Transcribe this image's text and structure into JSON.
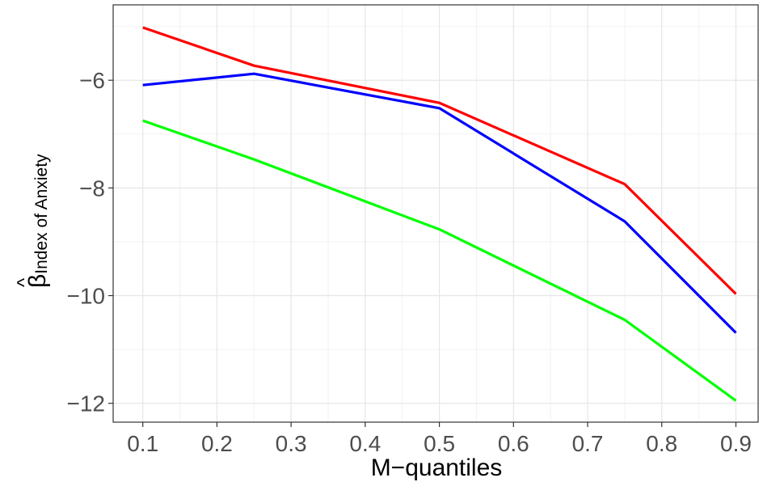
{
  "chart_data": {
    "type": "line",
    "xlabel": "M−quantiles",
    "ylabel": {
      "main": "β",
      "hat": "^",
      "subscript": "Index of Anxiety"
    },
    "x": [
      0.1,
      0.25,
      0.5,
      0.75,
      0.9
    ],
    "xlim": [
      0.06,
      0.93
    ],
    "ylim": [
      -12.35,
      -4.6
    ],
    "x_ticks": [
      0.1,
      0.2,
      0.3,
      0.4,
      0.5,
      0.6,
      0.7,
      0.8,
      0.9
    ],
    "x_tick_labels": [
      "0.1",
      "0.2",
      "0.3",
      "0.4",
      "0.5",
      "0.6",
      "0.7",
      "0.8",
      "0.9"
    ],
    "y_ticks": [
      -12,
      -10,
      -8,
      -6
    ],
    "y_tick_labels": [
      "−12",
      "−10",
      "−8",
      "−6"
    ],
    "grid": true,
    "legend": "none",
    "series": [
      {
        "color": "#ff0000",
        "values": [
          -5.02,
          -5.73,
          -6.42,
          -7.93,
          -9.97
        ]
      },
      {
        "color": "#0000ff",
        "values": [
          -6.09,
          -5.88,
          -6.52,
          -8.62,
          -10.69
        ]
      },
      {
        "color": "#00ff00",
        "values": [
          -6.75,
          -7.47,
          -8.77,
          -10.45,
          -11.95
        ]
      }
    ]
  }
}
